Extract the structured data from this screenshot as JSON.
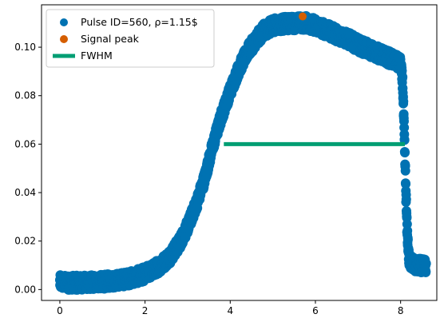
{
  "chart_data": {
    "type": "scatter",
    "xlim": [
      -0.43,
      8.85
    ],
    "ylim": [
      -0.0045,
      0.1175
    ],
    "x_ticks": [
      0,
      2,
      4,
      6,
      8
    ],
    "y_ticks": [
      0.0,
      0.02,
      0.04,
      0.06,
      0.08,
      0.1
    ],
    "x_tick_labels": [
      "0",
      "2",
      "4",
      "6",
      "8"
    ],
    "y_tick_labels": [
      "0.00",
      "0.02",
      "0.04",
      "0.06",
      "0.08",
      "0.10"
    ],
    "grid": false,
    "legend_position": "top-left",
    "series": [
      {
        "name": "Pulse ID=560, ρ=1.15$",
        "kind": "scatter",
        "color": "#0072b2",
        "x": [
          0.0,
          0.2,
          0.4,
          0.6,
          0.8,
          1.0,
          1.2,
          1.4,
          1.6,
          1.8,
          2.0,
          2.2,
          2.4,
          2.6,
          2.8,
          3.0,
          3.2,
          3.4,
          3.6,
          3.8,
          4.0,
          4.2,
          4.4,
          4.6,
          4.8,
          5.0,
          5.2,
          5.4,
          5.6,
          5.8,
          6.0,
          6.2,
          6.4,
          6.6,
          6.8,
          7.0,
          7.2,
          7.4,
          7.6,
          7.8,
          8.0,
          8.05,
          8.1,
          8.15,
          8.2,
          8.3,
          8.4,
          8.5,
          8.6
        ],
        "y": [
          0.003,
          0.0028,
          0.0028,
          0.0029,
          0.003,
          0.0032,
          0.0035,
          0.0039,
          0.0045,
          0.0053,
          0.0065,
          0.0082,
          0.0106,
          0.014,
          0.019,
          0.026,
          0.035,
          0.046,
          0.06,
          0.072,
          0.082,
          0.091,
          0.098,
          0.103,
          0.107,
          0.109,
          0.1095,
          0.1098,
          0.11,
          0.11,
          0.109,
          0.1075,
          0.106,
          0.1045,
          0.103,
          0.101,
          0.0995,
          0.098,
          0.0965,
          0.095,
          0.093,
          0.085,
          0.055,
          0.025,
          0.012,
          0.0105,
          0.01,
          0.0098,
          0.0096
        ],
        "spread": 0.003
      },
      {
        "name": "Signal peak",
        "kind": "point",
        "color": "#d55e00",
        "x": [
          5.7
        ],
        "y": [
          0.1127
        ]
      },
      {
        "name": "FWHM",
        "kind": "line",
        "color": "#009e73",
        "x": [
          3.85,
          8.1
        ],
        "y": [
          0.06,
          0.06
        ]
      }
    ]
  }
}
